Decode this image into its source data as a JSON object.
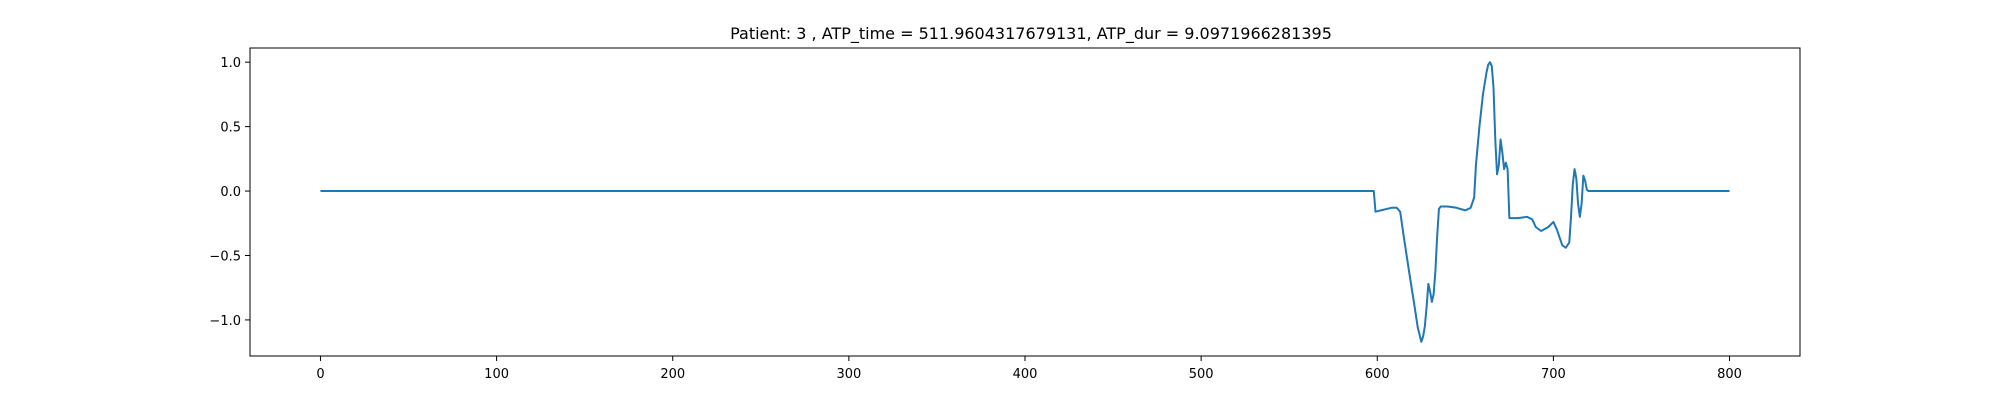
{
  "chart_data": {
    "type": "line",
    "title": "Patient: 3 , ATP_time = 511.9604317679131, ATP_dur = 9.0971966281395",
    "xlabel": "",
    "ylabel": "",
    "xlim": [
      -40,
      840
    ],
    "ylim": [
      -1.28,
      1.11
    ],
    "xticks": [
      0,
      100,
      200,
      300,
      400,
      500,
      600,
      700,
      800
    ],
    "xtick_labels": [
      "0",
      "100",
      "200",
      "300",
      "400",
      "500",
      "600",
      "700",
      "800"
    ],
    "yticks": [
      1.0,
      0.5,
      0.0,
      -0.5,
      -1.0
    ],
    "ytick_labels": [
      "1.0",
      "0.5",
      "0.0",
      "−0.5",
      "−1.0"
    ],
    "grid": false,
    "series": [
      {
        "color": "#1f77b4",
        "points": [
          [
            0,
            0.0
          ],
          [
            598,
            0.0
          ],
          [
            599,
            -0.16
          ],
          [
            602,
            -0.15
          ],
          [
            608,
            -0.13
          ],
          [
            611,
            -0.13
          ],
          [
            613,
            -0.16
          ],
          [
            615,
            -0.35
          ],
          [
            618,
            -0.62
          ],
          [
            621,
            -0.88
          ],
          [
            623,
            -1.06
          ],
          [
            625,
            -1.17
          ],
          [
            626,
            -1.13
          ],
          [
            627,
            -1.05
          ],
          [
            628,
            -0.9
          ],
          [
            629,
            -0.72
          ],
          [
            630,
            -0.78
          ],
          [
            631,
            -0.86
          ],
          [
            632,
            -0.8
          ],
          [
            633,
            -0.62
          ],
          [
            634,
            -0.35
          ],
          [
            635,
            -0.14
          ],
          [
            636,
            -0.12
          ],
          [
            640,
            -0.12
          ],
          [
            645,
            -0.13
          ],
          [
            650,
            -0.15
          ],
          [
            653,
            -0.13
          ],
          [
            655,
            -0.05
          ],
          [
            656,
            0.2
          ],
          [
            658,
            0.5
          ],
          [
            660,
            0.75
          ],
          [
            662,
            0.92
          ],
          [
            663,
            0.98
          ],
          [
            664,
            1.0
          ],
          [
            665,
            0.97
          ],
          [
            666,
            0.8
          ],
          [
            667,
            0.4
          ],
          [
            668,
            0.13
          ],
          [
            669,
            0.2
          ],
          [
            670,
            0.4
          ],
          [
            671,
            0.3
          ],
          [
            672,
            0.17
          ],
          [
            673,
            0.22
          ],
          [
            674,
            0.17
          ],
          [
            675,
            -0.21
          ],
          [
            680,
            -0.21
          ],
          [
            685,
            -0.2
          ],
          [
            688,
            -0.22
          ],
          [
            690,
            -0.28
          ],
          [
            693,
            -0.31
          ],
          [
            697,
            -0.28
          ],
          [
            700,
            -0.24
          ],
          [
            702,
            -0.3
          ],
          [
            705,
            -0.42
          ],
          [
            707,
            -0.44
          ],
          [
            709,
            -0.4
          ],
          [
            710,
            -0.2
          ],
          [
            711,
            0.05
          ],
          [
            712,
            0.17
          ],
          [
            713,
            0.1
          ],
          [
            714,
            -0.1
          ],
          [
            715,
            -0.2
          ],
          [
            716,
            -0.1
          ],
          [
            717,
            0.12
          ],
          [
            718,
            0.08
          ],
          [
            719,
            0.01
          ],
          [
            720,
            0.0
          ],
          [
            800,
            0.0
          ]
        ]
      }
    ]
  }
}
